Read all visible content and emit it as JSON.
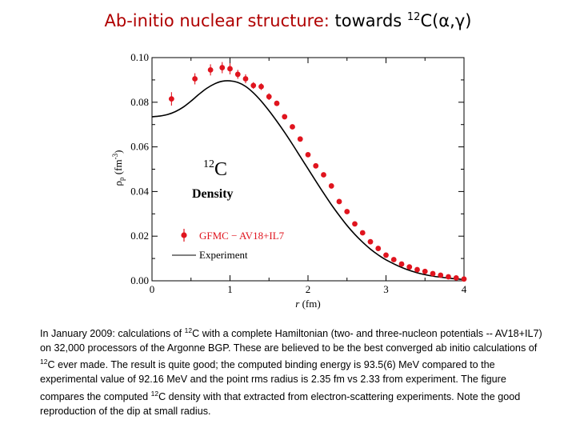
{
  "slide": {
    "title_red": "Ab-initio nuclear structure:",
    "title_black": "towards",
    "title_sup": "12",
    "title_tail": "C(α,γ)",
    "caption": [
      {
        "text": "In January 2009: calculations of "
      },
      {
        "sup": "12"
      },
      {
        "text": "C with a complete Hamiltonian (two- and three-nucleon potentials -- AV18+IL7) on 32,000 processors of the Argonne BGP. These are believed to be the best converged ab initio calculations of "
      },
      {
        "sup": "12"
      },
      {
        "text": "C ever made. The result is quite good; the computed binding energy is 93.5(6) MeV compared to the experimental value of 92.16 MeV and the point rms radius is 2.35 fm vs 2.33 from experiment. The figure compares the computed "
      },
      {
        "sup": "12"
      },
      {
        "text": "C density with that extracted from electron-scattering experiments. Note the good reproduction of the dip at small radius."
      }
    ]
  },
  "chart_data": {
    "type": "scatter",
    "xlabel_italic": "r",
    "xlabel_rest": " (fm)",
    "ylabel_main": "ρ",
    "ylabel_sub": "p",
    "ylabel_units": " (fm",
    "ylabel_units_sup": "-3",
    "ylabel_close": ")",
    "xlim": [
      0,
      4
    ],
    "ylim": [
      0,
      0.1
    ],
    "xticks": [
      "0",
      "1",
      "2",
      "3",
      "4"
    ],
    "yticks": [
      "0.00",
      "0.02",
      "0.04",
      "0.06",
      "0.08",
      "0.10"
    ],
    "annotation_sup": "12",
    "annotation_main": "C",
    "annotation_sub": "Density",
    "colors": {
      "gfmc": "#e0141e",
      "experiment": "#000000"
    },
    "legend": {
      "position": "bottom-left",
      "entries": [
        "GFMC − AV18+IL7",
        "Experiment"
      ]
    },
    "series": [
      {
        "name": "GFMC − AV18+IL7",
        "style": "points-with-error-bars",
        "x": [
          0.25,
          0.55,
          0.75,
          0.9,
          1.0,
          1.1,
          1.2,
          1.3,
          1.4,
          1.5,
          1.6,
          1.7,
          1.8,
          1.9,
          2.0,
          2.1,
          2.2,
          2.3,
          2.4,
          2.5,
          2.6,
          2.7,
          2.8,
          2.9,
          3.0,
          3.1,
          3.2,
          3.3,
          3.4,
          3.5,
          3.6,
          3.7,
          3.8,
          3.9,
          4.0
        ],
        "y": [
          0.0815,
          0.0905,
          0.0945,
          0.0955,
          0.095,
          0.0925,
          0.0905,
          0.0875,
          0.087,
          0.0825,
          0.0795,
          0.0735,
          0.069,
          0.0635,
          0.0565,
          0.0515,
          0.0475,
          0.0425,
          0.0355,
          0.031,
          0.0255,
          0.0215,
          0.0175,
          0.0145,
          0.0115,
          0.0095,
          0.0075,
          0.0062,
          0.005,
          0.0042,
          0.0032,
          0.0025,
          0.0018,
          0.0013,
          0.0008
        ],
        "yerr": [
          0.003,
          0.0025,
          0.0025,
          0.0025,
          0.0025,
          0.002,
          0.002,
          0.0015,
          0.0015,
          0.0015,
          0.0012,
          0.001,
          0.001,
          0.001,
          0.001,
          0.001,
          0.0008,
          0.0008,
          0.0008,
          0.0008,
          0.0006,
          0.0006,
          0.0006,
          0.0005,
          0.0005,
          0.0005,
          0.0004,
          0.0004,
          0.0004,
          0.0003,
          0.0003,
          0.0003,
          0.0003,
          0.0003,
          0.0003
        ]
      },
      {
        "name": "Experiment",
        "style": "line",
        "x": [
          0.0,
          0.1,
          0.2,
          0.3,
          0.4,
          0.5,
          0.6,
          0.7,
          0.8,
          0.9,
          1.0,
          1.1,
          1.2,
          1.3,
          1.4,
          1.5,
          1.6,
          1.7,
          1.8,
          1.9,
          2.0,
          2.1,
          2.2,
          2.3,
          2.4,
          2.5,
          2.6,
          2.7,
          2.8,
          2.9,
          3.0,
          3.2,
          3.4,
          3.6,
          3.8,
          4.0
        ],
        "y": [
          0.0735,
          0.0738,
          0.0745,
          0.0758,
          0.0778,
          0.0805,
          0.0835,
          0.0862,
          0.0882,
          0.0894,
          0.0896,
          0.0889,
          0.0871,
          0.0842,
          0.0805,
          0.0762,
          0.0715,
          0.0665,
          0.0612,
          0.0557,
          0.0502,
          0.0447,
          0.0393,
          0.0341,
          0.0293,
          0.0248,
          0.0208,
          0.0173,
          0.0142,
          0.0116,
          0.0094,
          0.006,
          0.0036,
          0.0021,
          0.0012,
          0.0006
        ]
      }
    ]
  }
}
